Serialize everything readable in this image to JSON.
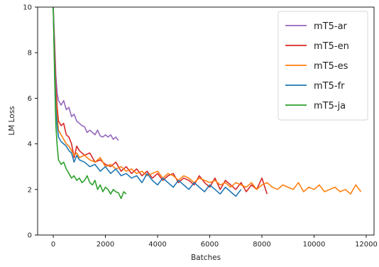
{
  "chart_data": {
    "type": "line",
    "title": "",
    "xlabel": "Batches",
    "ylabel": "LM Loss",
    "xlim": [
      -600,
      12300
    ],
    "ylim": [
      0,
      10
    ],
    "xticks": [
      0,
      2000,
      4000,
      6000,
      8000,
      10000,
      12000
    ],
    "yticks": [
      0,
      2,
      4,
      6,
      8,
      10
    ],
    "grid": false,
    "legend_position": "top-right",
    "series": [
      {
        "name": "mT5-ar",
        "color": "#9467bd",
        "x": [
          0,
          50,
          100,
          150,
          200,
          300,
          400,
          500,
          600,
          700,
          800,
          900,
          1000,
          1100,
          1200,
          1300,
          1400,
          1500,
          1600,
          1700,
          1800,
          1900,
          2000,
          2100,
          2200,
          2300,
          2400,
          2500
        ],
        "y": [
          10,
          8.5,
          7.0,
          6.2,
          5.9,
          5.7,
          5.9,
          5.5,
          5.6,
          5.2,
          5.3,
          5.0,
          4.9,
          4.8,
          4.75,
          4.5,
          4.6,
          4.5,
          4.4,
          4.6,
          4.35,
          4.3,
          4.4,
          4.3,
          4.4,
          4.2,
          4.3,
          4.15
        ]
      },
      {
        "name": "mT5-en",
        "color": "#d62728",
        "x": [
          0,
          50,
          100,
          150,
          200,
          300,
          400,
          500,
          600,
          700,
          800,
          900,
          1000,
          1200,
          1400,
          1600,
          1800,
          2000,
          2200,
          2400,
          2600,
          2800,
          3000,
          3200,
          3400,
          3600,
          3800,
          4000,
          4200,
          4400,
          4600,
          4800,
          5000,
          5200,
          5400,
          5600,
          5800,
          6000,
          6200,
          6400,
          6600,
          6800,
          7000,
          7200,
          7400,
          7600,
          7800,
          8000,
          8200
        ],
        "y": [
          10,
          8.2,
          6.5,
          5.6,
          5.0,
          4.8,
          4.9,
          4.4,
          4.3,
          4.0,
          3.4,
          3.9,
          3.7,
          3.5,
          3.6,
          3.2,
          3.3,
          3.1,
          3.0,
          3.2,
          2.8,
          3.0,
          2.7,
          2.9,
          2.6,
          2.8,
          2.5,
          2.7,
          2.4,
          2.6,
          2.7,
          2.3,
          2.5,
          2.4,
          2.2,
          2.6,
          2.3,
          2.1,
          2.5,
          2.0,
          2.4,
          2.2,
          2.0,
          2.3,
          1.9,
          2.2,
          2.0,
          2.5,
          1.8
        ]
      },
      {
        "name": "mT5-es",
        "color": "#ff7f0e",
        "x": [
          0,
          50,
          100,
          150,
          200,
          300,
          400,
          500,
          600,
          700,
          800,
          900,
          1000,
          1200,
          1400,
          1600,
          1800,
          2000,
          2200,
          2400,
          2600,
          2800,
          3000,
          3200,
          3400,
          3600,
          3800,
          4000,
          4200,
          4400,
          4600,
          4800,
          5000,
          5200,
          5400,
          5600,
          5800,
          6000,
          6200,
          6400,
          6600,
          6800,
          7000,
          7200,
          7400,
          7600,
          7800,
          8000,
          8200,
          8400,
          8600,
          8800,
          9000,
          9200,
          9400,
          9600,
          9800,
          10000,
          10200,
          10400,
          10600,
          10800,
          11000,
          11200,
          11400,
          11600,
          11800
        ],
        "y": [
          10,
          7.8,
          6.0,
          5.2,
          4.6,
          4.4,
          4.2,
          4.0,
          3.9,
          3.7,
          3.5,
          3.6,
          3.4,
          3.5,
          3.3,
          3.2,
          3.4,
          3.0,
          3.1,
          2.9,
          3.0,
          2.8,
          2.9,
          2.7,
          2.8,
          2.6,
          2.7,
          2.8,
          2.5,
          2.7,
          2.6,
          2.4,
          2.6,
          2.5,
          2.3,
          2.5,
          2.4,
          2.3,
          2.4,
          2.2,
          2.3,
          2.1,
          2.3,
          2.2,
          2.1,
          2.3,
          2.0,
          2.2,
          2.3,
          2.1,
          2.0,
          2.2,
          2.1,
          2.0,
          2.3,
          1.9,
          2.1,
          2.0,
          2.2,
          1.9,
          2.0,
          2.1,
          1.9,
          2.0,
          1.8,
          2.2,
          1.9
        ]
      },
      {
        "name": "mT5-fr",
        "color": "#1f77b4",
        "x": [
          0,
          50,
          100,
          150,
          200,
          300,
          400,
          500,
          600,
          700,
          800,
          900,
          1000,
          1200,
          1400,
          1600,
          1800,
          2000,
          2200,
          2400,
          2600,
          2800,
          3000,
          3200,
          3400,
          3600,
          3800,
          4000,
          4200,
          4400,
          4600,
          4800,
          5000,
          5200,
          5400,
          5600,
          5800,
          6000,
          6200,
          6400,
          6600,
          6800,
          7000,
          7200
        ],
        "y": [
          10,
          7.5,
          5.6,
          4.8,
          4.3,
          4.1,
          4.0,
          3.9,
          3.7,
          3.6,
          3.2,
          3.5,
          3.3,
          3.2,
          3.0,
          3.1,
          2.8,
          3.0,
          2.7,
          2.9,
          2.6,
          2.7,
          2.5,
          2.6,
          2.3,
          2.7,
          2.4,
          2.2,
          2.5,
          2.3,
          2.1,
          2.4,
          2.2,
          2.0,
          2.3,
          2.1,
          1.9,
          2.2,
          2.0,
          1.8,
          2.1,
          1.9,
          1.7,
          2.0
        ]
      },
      {
        "name": "mT5-ja",
        "color": "#2ca02c",
        "x": [
          0,
          50,
          100,
          150,
          200,
          300,
          400,
          500,
          600,
          700,
          800,
          900,
          1000,
          1100,
          1200,
          1300,
          1400,
          1500,
          1600,
          1700,
          1800,
          1900,
          2000,
          2100,
          2200,
          2300,
          2400,
          2500,
          2600,
          2700,
          2800
        ],
        "y": [
          10,
          7.0,
          4.8,
          3.9,
          3.3,
          3.1,
          3.2,
          2.9,
          2.7,
          2.5,
          2.6,
          2.4,
          2.5,
          2.3,
          2.4,
          2.6,
          2.3,
          2.2,
          2.4,
          2.0,
          2.2,
          1.9,
          2.1,
          2.0,
          1.8,
          2.0,
          1.9,
          1.85,
          1.6,
          1.9,
          1.8
        ]
      }
    ]
  }
}
